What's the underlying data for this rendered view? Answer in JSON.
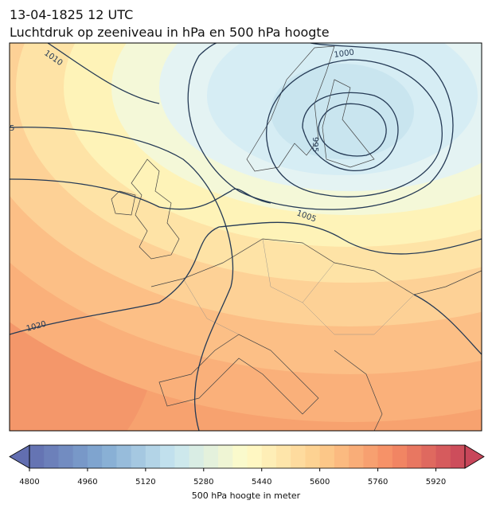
{
  "header": {
    "title": "13-04-1825 12 UTC",
    "subtitle": "Luchtdruk op zeeniveau in hPa en 500 hPa hoogte"
  },
  "map": {
    "contour_labels": [
      "1010",
      "1000",
      "5",
      "995",
      "1005",
      "1020"
    ]
  },
  "colorbar": {
    "label": "500 hPa hoogte in meter",
    "range": [
      4800,
      6000
    ],
    "ticks": [
      4800,
      4960,
      5120,
      5280,
      5440,
      5600,
      5760,
      5920
    ]
  }
}
